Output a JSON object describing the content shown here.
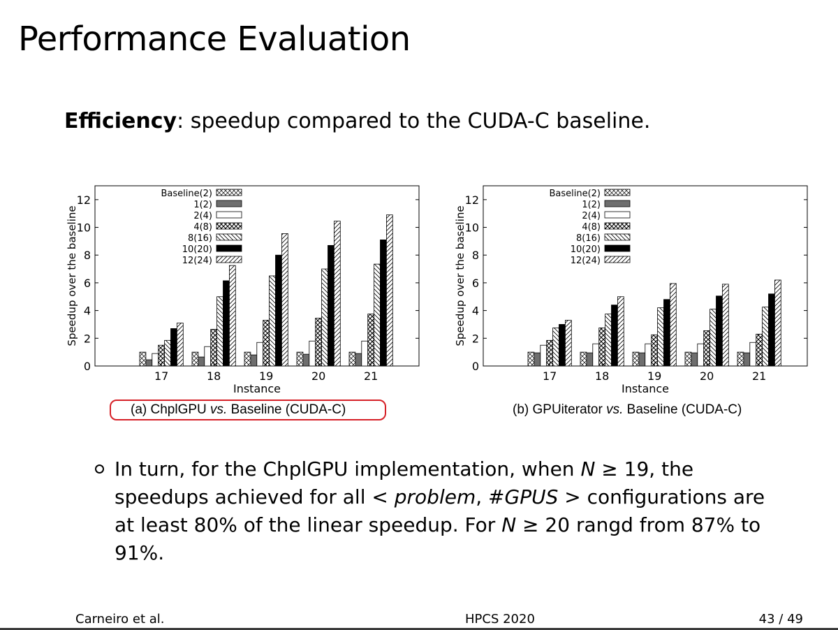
{
  "slide": {
    "title": "Performance Evaluation",
    "intro_bold": "Efficiency",
    "intro_rest": ": speedup compared to the CUDA-C baseline.",
    "bullet": {
      "p1": "In turn, for the ChplGPU implementation, when ",
      "n1": "N",
      "p2": " ≥ 19, the speedups achieved for all < ",
      "problem": "problem",
      "p3": ", #",
      "gpus": "GPUS",
      "p4": " > configurations are at least 80% of the linear speedup. For ",
      "n2": "N",
      "p5": " ≥ 20 rangd from 87% to 91%."
    },
    "footer": {
      "left": "Carneiro et al.",
      "center": "HPCS 2020",
      "right": "43 / 49"
    }
  },
  "colors": {
    "highlight": "#d62027",
    "text": "#000000"
  },
  "chart_data": [
    {
      "type": "bar",
      "caption": {
        "prefix": "(a) ChplGPU ",
        "vs": "vs.",
        "suffix": " Baseline (CUDA-C)"
      },
      "highlighted": true,
      "xlabel": "Instance",
      "ylabel": "Speedup over the baseline",
      "categories": [
        "17",
        "18",
        "19",
        "20",
        "21"
      ],
      "ylim": [
        0,
        13
      ],
      "yticks": [
        0,
        2,
        4,
        6,
        8,
        10,
        12
      ],
      "grid": false,
      "legend_position": "top-left",
      "series": [
        {
          "name": "Baseline(2)",
          "pattern": "crosshatch",
          "values": [
            1.0,
            1.0,
            1.0,
            1.0,
            1.0
          ]
        },
        {
          "name": "1(2)",
          "pattern": "gray",
          "values": [
            0.45,
            0.65,
            0.8,
            0.85,
            0.9
          ]
        },
        {
          "name": "2(4)",
          "pattern": "white",
          "values": [
            0.9,
            1.4,
            1.7,
            1.8,
            1.8
          ]
        },
        {
          "name": "4(8)",
          "pattern": "dots",
          "values": [
            1.5,
            2.65,
            3.3,
            3.45,
            3.75
          ]
        },
        {
          "name": "8(16)",
          "pattern": "backslash",
          "values": [
            1.85,
            5.0,
            6.5,
            7.0,
            7.35
          ]
        },
        {
          "name": "10(20)",
          "pattern": "black",
          "values": [
            2.7,
            6.15,
            8.0,
            8.7,
            9.1
          ]
        },
        {
          "name": "12(24)",
          "pattern": "slash",
          "values": [
            3.1,
            7.25,
            9.55,
            10.45,
            10.9
          ]
        }
      ]
    },
    {
      "type": "bar",
      "caption": {
        "prefix": "(b) GPUiterator ",
        "vs": "vs.",
        "suffix": " Baseline (CUDA-C)"
      },
      "highlighted": false,
      "xlabel": "Instance",
      "ylabel": "Speedup over the baseline",
      "categories": [
        "17",
        "18",
        "19",
        "20",
        "21"
      ],
      "ylim": [
        0,
        13
      ],
      "yticks": [
        0,
        2,
        4,
        6,
        8,
        10,
        12
      ],
      "grid": false,
      "legend_position": "top-left",
      "series": [
        {
          "name": "Baseline(2)",
          "pattern": "crosshatch",
          "values": [
            1.0,
            1.0,
            1.0,
            1.0,
            1.0
          ]
        },
        {
          "name": "1(2)",
          "pattern": "gray",
          "values": [
            0.95,
            0.95,
            0.95,
            0.95,
            0.95
          ]
        },
        {
          "name": "2(4)",
          "pattern": "white",
          "values": [
            1.5,
            1.6,
            1.6,
            1.6,
            1.7
          ]
        },
        {
          "name": "4(8)",
          "pattern": "dots",
          "values": [
            1.85,
            2.75,
            2.25,
            2.55,
            2.3
          ]
        },
        {
          "name": "8(16)",
          "pattern": "backslash",
          "values": [
            2.75,
            3.75,
            4.2,
            4.1,
            4.25
          ]
        },
        {
          "name": "10(20)",
          "pattern": "black",
          "values": [
            3.0,
            4.4,
            4.8,
            5.05,
            5.2
          ]
        },
        {
          "name": "12(24)",
          "pattern": "slash",
          "values": [
            3.3,
            5.0,
            5.95,
            5.9,
            6.2
          ]
        }
      ]
    }
  ]
}
